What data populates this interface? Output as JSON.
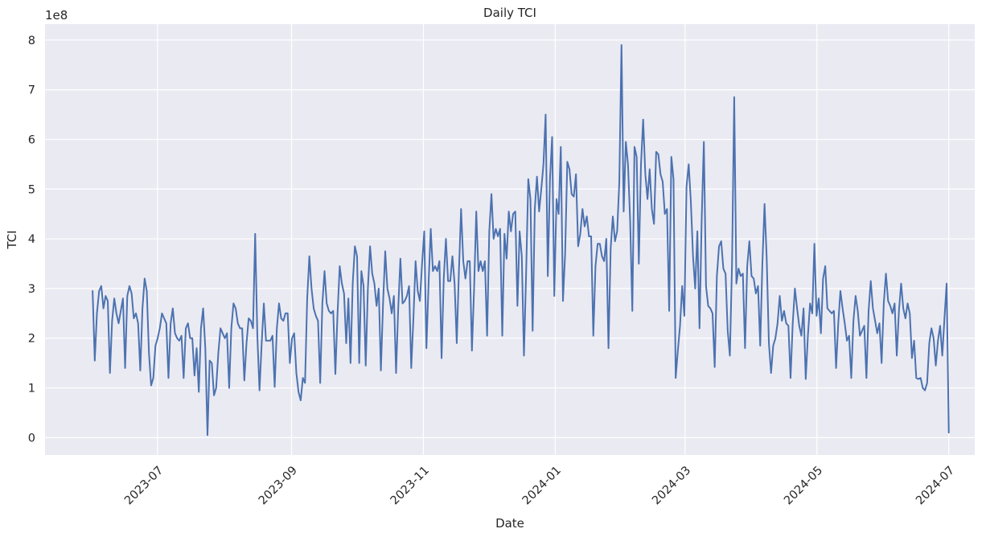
{
  "chart_data": {
    "type": "line",
    "title": "Daily TCI",
    "xlabel": "Date",
    "ylabel": "TCI",
    "y_offset_label": "1e8",
    "y_scale_factor": 100000000,
    "xlim": [
      "2023-05-10",
      "2024-07-13"
    ],
    "ylim": [
      -0.35,
      8.32
    ],
    "x_ticks": [
      "2023-07-01",
      "2023-09-01",
      "2023-11-01",
      "2024-01-01",
      "2024-03-01",
      "2024-05-01",
      "2024-07-01"
    ],
    "x_tick_labels": [
      "2023-07",
      "2023-09",
      "2023-11",
      "2024-01",
      "2024-03",
      "2024-05",
      "2024-07"
    ],
    "y_ticks": [
      0,
      1,
      2,
      3,
      4,
      5,
      6,
      7,
      8
    ],
    "y_tick_labels": [
      "0",
      "1",
      "2",
      "3",
      "4",
      "5",
      "6",
      "7",
      "8"
    ],
    "grid": true,
    "colors": {
      "background": "#eaeaf2",
      "grid": "#ffffff",
      "line": "#4c72b0",
      "text": "#262626"
    },
    "series": [
      {
        "x_start": "2023-06-01",
        "x_end": "2024-07-01",
        "y_units": "1e8",
        "values": [
          2.95,
          1.55,
          2.5,
          2.95,
          3.05,
          2.6,
          2.85,
          2.75,
          1.3,
          2.35,
          2.8,
          2.5,
          2.3,
          2.55,
          2.8,
          1.4,
          2.85,
          3.05,
          2.9,
          2.4,
          2.5,
          2.3,
          1.35,
          2.6,
          3.2,
          2.95,
          1.7,
          1.05,
          1.2,
          1.85,
          2.0,
          2.2,
          2.5,
          2.4,
          2.3,
          1.2,
          2.3,
          2.6,
          2.1,
          2.0,
          1.95,
          2.05,
          1.2,
          2.2,
          2.3,
          2.0,
          2.0,
          1.25,
          1.8,
          0.92,
          2.2,
          2.6,
          1.8,
          0.05,
          1.55,
          1.5,
          0.85,
          1.0,
          1.7,
          2.2,
          2.1,
          2.0,
          2.1,
          1.0,
          2.2,
          2.7,
          2.6,
          2.3,
          2.2,
          2.2,
          1.15,
          1.9,
          2.4,
          2.35,
          2.2,
          4.1,
          2.05,
          0.95,
          1.9,
          2.7,
          1.95,
          1.95,
          1.95,
          2.05,
          1.02,
          2.2,
          2.7,
          2.4,
          2.35,
          2.5,
          2.5,
          1.5,
          2.0,
          2.1,
          1.3,
          0.92,
          0.75,
          1.2,
          1.1,
          2.8,
          3.65,
          3.0,
          2.6,
          2.45,
          2.35,
          1.1,
          2.7,
          3.35,
          2.7,
          2.55,
          2.5,
          2.55,
          1.28,
          2.5,
          3.45,
          3.1,
          2.9,
          1.9,
          2.8,
          1.5,
          3.1,
          3.85,
          3.65,
          1.5,
          3.35,
          3.05,
          1.45,
          3.0,
          3.85,
          3.3,
          3.1,
          2.65,
          3.0,
          1.35,
          2.7,
          3.75,
          3.0,
          2.8,
          2.5,
          2.85,
          1.3,
          2.6,
          3.6,
          2.7,
          2.75,
          2.85,
          3.05,
          1.4,
          2.4,
          3.55,
          2.95,
          2.75,
          3.5,
          4.15,
          1.8,
          3.1,
          4.2,
          3.35,
          3.45,
          3.35,
          3.55,
          1.6,
          3.2,
          4.0,
          3.15,
          3.15,
          3.65,
          3.1,
          1.9,
          3.35,
          4.6,
          3.55,
          3.2,
          3.55,
          3.55,
          1.75,
          3.0,
          4.55,
          3.35,
          3.55,
          3.35,
          3.55,
          2.05,
          4.15,
          4.9,
          4.0,
          4.2,
          4.05,
          4.2,
          2.05,
          4.1,
          3.6,
          4.55,
          4.15,
          4.5,
          4.55,
          2.65,
          4.15,
          3.65,
          1.65,
          3.3,
          5.2,
          4.8,
          2.15,
          4.6,
          5.25,
          4.55,
          5.0,
          5.5,
          6.5,
          3.25,
          5.2,
          6.05,
          2.85,
          4.8,
          4.5,
          5.85,
          2.75,
          3.7,
          5.55,
          5.4,
          4.9,
          4.85,
          5.3,
          3.85,
          4.1,
          4.6,
          4.25,
          4.45,
          4.05,
          4.05,
          2.05,
          3.45,
          3.9,
          3.9,
          3.65,
          3.55,
          4.0,
          1.8,
          3.8,
          4.45,
          3.95,
          4.15,
          5.15,
          7.9,
          4.55,
          5.95,
          5.5,
          4.35,
          2.55,
          5.85,
          5.65,
          3.5,
          5.5,
          6.4,
          5.3,
          4.8,
          5.4,
          4.6,
          4.3,
          5.75,
          5.7,
          5.3,
          5.15,
          4.5,
          4.6,
          2.55,
          5.65,
          5.2,
          1.2,
          1.75,
          2.25,
          3.05,
          2.45,
          5.05,
          5.5,
          4.75,
          3.65,
          3.0,
          4.15,
          2.2,
          4.4,
          5.95,
          3.05,
          2.65,
          2.6,
          2.5,
          1.42,
          3.25,
          3.85,
          3.95,
          3.4,
          3.3,
          2.15,
          1.65,
          3.5,
          6.85,
          3.1,
          3.4,
          3.25,
          3.3,
          1.8,
          3.45,
          3.95,
          3.25,
          3.2,
          2.9,
          3.05,
          1.85,
          3.5,
          4.7,
          3.6,
          1.9,
          1.3,
          1.85,
          2.0,
          2.3,
          2.85,
          2.35,
          2.55,
          2.3,
          2.25,
          1.2,
          2.3,
          3.0,
          2.6,
          2.25,
          2.05,
          2.6,
          1.18,
          2.05,
          2.7,
          2.5,
          3.9,
          2.45,
          2.8,
          2.1,
          3.2,
          3.45,
          2.6,
          2.55,
          2.5,
          2.55,
          1.4,
          2.3,
          2.95,
          2.6,
          2.3,
          1.95,
          2.05,
          1.2,
          2.35,
          2.85,
          2.55,
          2.05,
          2.15,
          2.25,
          1.2,
          2.55,
          3.15,
          2.6,
          2.35,
          2.1,
          2.3,
          1.5,
          2.7,
          3.3,
          2.75,
          2.65,
          2.5,
          2.7,
          1.65,
          2.55,
          3.1,
          2.6,
          2.4,
          2.7,
          2.5,
          1.6,
          1.95,
          1.2,
          1.18,
          1.2,
          1.0,
          0.95,
          1.1,
          1.9,
          2.2,
          2.0,
          1.45,
          1.95,
          2.25,
          1.65,
          2.4,
          3.1,
          0.1
        ]
      }
    ]
  }
}
